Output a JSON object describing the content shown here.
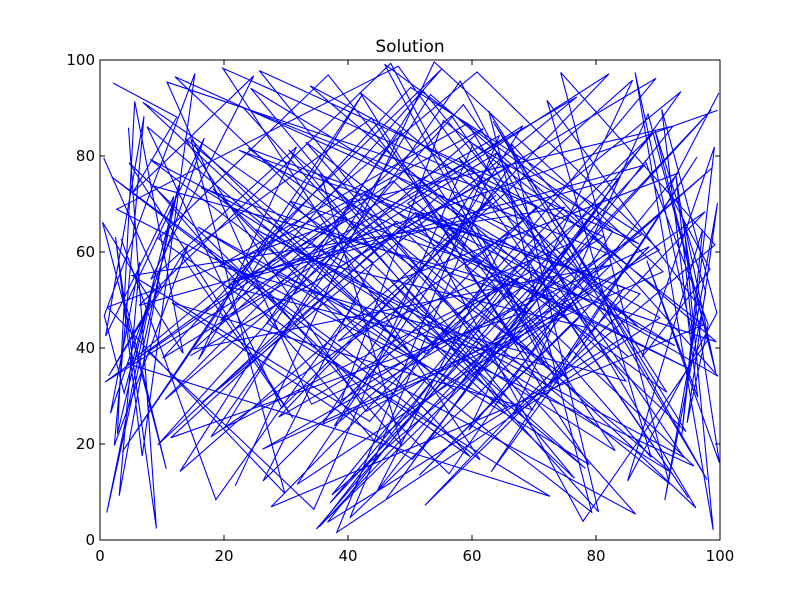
{
  "chart_data": {
    "type": "line",
    "title": "Solution",
    "xlabel": "",
    "ylabel": "",
    "xlim": [
      0,
      100
    ],
    "ylim": [
      0,
      100
    ],
    "x_ticks": [
      0,
      20,
      40,
      60,
      80,
      100
    ],
    "y_ticks": [
      0,
      20,
      40,
      60,
      80,
      100
    ],
    "x_tick_labels": [
      "0",
      "20",
      "40",
      "60",
      "80",
      "100"
    ],
    "y_tick_labels": [
      "0",
      "20",
      "40",
      "60",
      "80",
      "100"
    ],
    "grid": false,
    "line_color": "#0000ff",
    "series": [
      {
        "x": [
          2.1,
          12.4,
          5.3,
          24.8,
          8.2,
          31.7,
          15.9,
          42.3,
          3.6,
          27.5,
          55.1,
          19.4,
          68.2,
          37.8,
          81.5,
          46.2,
          93.7,
          58.9,
          72.4,
          96.3,
          63.1,
          84.6,
          51.2,
          77.9,
          98.1,
          88.4,
          66.7,
          99.2,
          74.3,
          91.8,
          57.4,
          35.6,
          48.7,
          22.3,
          61.8,
          10.5,
          39.4,
          1.2,
          29.8,
          14.7,
          53.6,
          6.9,
          44.1,
          26.3,
          70.5,
          33.9,
          85.2,
          49.8,
          94.5,
          62.7,
          79.3,
          41.6,
          18.2,
          59.7,
          9.4,
          36.8,
          75.6,
          23.9,
          87.1,
          52.4,
          97.6,
          67.3,
          43.8,
          13.2,
          31.1,
          4.7,
          56.3,
          82.7,
          45.9,
          71.8,
          20.6,
          64.4,
          38.2,
          90.3,
          54.8,
          16.5,
          76.9,
          28.4,
          95.8,
          47.3,
          7.8,
          34.5,
          60.2,
          86.9,
          25.7,
          69.8,
          11.6,
          50.4,
          92.4,
          40.7,
          0.8,
          32.6,
          78.4,
          58.1,
          17.9,
          65.9,
          44.7,
          83.8,
          21.4,
          99.6
        ],
        "y": [
          95.2,
          88.1,
          72.4,
          96.7,
          54.3,
          81.9,
          37.6,
          92.8,
          18.4,
          63.5,
          98.1,
          45.7,
          86.3,
          23.8,
          71.2,
          8.6,
          93.4,
          56.9,
          31.7,
          79.8,
          14.2,
          52.6,
          67.4,
          3.9,
          41.8,
          88.7,
          26.3,
          61.5,
          97.4,
          11.8,
          47.2,
          76.3,
          19.6,
          58.4,
          85.7,
          29.3,
          66.8,
          48.5,
          9.7,
          83.4,
          34.6,
          91.2,
          57.8,
          12.3,
          69.5,
          94.6,
          38.2,
          77.1,
          22.6,
          89.4,
          5.8,
          43.9,
          73.2,
          17.4,
          62.8,
          96.9,
          33.5,
          81.6,
          51.3,
          7.2,
          68.4,
          40.7,
          87.9,
          59.1,
          25.4,
          78.6,
          13.8,
          64.3,
          99.1,
          36.4,
          52.8,
          84.2,
          1.6,
          46.3,
          71.9,
          28.7,
          92.3,
          55.6,
          15.4,
          74.8,
          39.2,
          6.4,
          82.5,
          61.7,
          97.8,
          27.1,
          49.4,
          16.8,
          86.2,
          70.4,
          32.9,
          58.7,
          44.3,
          95.6,
          21.5,
          63.9,
          10.2,
          75.4,
          53.8,
          89.5
        ]
      },
      {
        "x": [
          3.4,
          18.7,
          41.2,
          7.6,
          29.3,
          63.8,
          12.9,
          52.1,
          84.3,
          36.7,
          70.2,
          22.4,
          95.1,
          47.8,
          9.3,
          58.6,
          79.4,
          31.8,
          66.1,
          14.6,
          89.7,
          43.5,
          5.2,
          74.9,
          27.6,
          97.3,
          55.4,
          38.9,
          81.2,
          19.8,
          61.3,
          1.9,
          45.6,
          86.4,
          33.2,
          68.7,
          11.4,
          50.9,
          92.7,
          24.3,
          76.5,
          39.7,
          8.1,
          57.2,
          98.6,
          35.4,
          64.9,
          16.3,
          83.1,
          48.4,
          26.9,
          72.6,
          4.5,
          60.8,
          90.2,
          42.9,
          13.7,
          78.3,
          30.6,
          99.4,
          53.3,
          20.1,
          67.4,
          37.1,
          87.8,
          6.3,
          46.9,
          73.8,
          25.1,
          94.2,
          56.7,
          15.2,
          82.4,
          40.3,
          62.5,
          10.8,
          34.1,
          88.6,
          51.5,
          77.2
        ],
        "y": [
          62.7,
          8.4,
          49.3,
          86.1,
          27.5,
          71.8,
          14.3,
          93.6,
          42.1,
          3.7,
          58.9,
          81.2,
          35.6,
          66.4,
          19.8,
          90.7,
          52.3,
          11.6,
          77.9,
          38.4,
          96.2,
          24.7,
          55.1,
          69.3,
          6.9,
          44.8,
          87.4,
          29.1,
          63.2,
          98.3,
          16.7,
          75.6,
          33.8,
          5.4,
          82.9,
          47.6,
          21.3,
          68.2,
          40.5,
          94.1,
          12.9,
          57.7,
          79.3,
          31.2,
          89.6,
          2.8,
          51.9,
          73.4,
          18.6,
          85.3,
          45.2,
          9.1,
          36.7,
          97.5,
          60.4,
          26.8,
          83.7,
          14.9,
          70.6,
          41.3,
          92.8,
          23.4,
          54.6,
          7.7,
          78.1,
          48.9,
          99.3,
          32.6,
          64.7,
          17.2,
          88.4,
          39.8,
          57.3,
          4.6,
          72.9,
          95.4,
          28.3,
          61.1,
          13.5,
          46.2
        ]
      },
      {
        "x": [
          96.8,
          72.1,
          88.9,
          54.7,
          99.7,
          66.3,
          80.4,
          47.1,
          93.2,
          59.5,
          85.9,
          38.4,
          76.1,
          97.9,
          63.4,
          91.4,
          49.6,
          82.1,
          28.8,
          69.9,
          94.9,
          57.9,
          86.7,
          41.9,
          78.9,
          15.8,
          52.8,
          89.3,
          34.9,
          73.1,
          8.7,
          44.4,
          81.7,
          23.1,
          61.6,
          98.8,
          37.4,
          70.8,
          12.1,
          55.8,
          92.1,
          30.4,
          65.7,
          2.7,
          48.1,
          84.8,
          19.2,
          59.3,
          96.1,
          42.6,
          75.3,
          26.2,
          87.3,
          50.1,
          10.1,
          64.1,
          35.9,
          90.8,
          53.9,
          21.8
        ],
        "y": [
          48.3,
          91.6,
          17.2,
          67.8,
          34.1,
          82.6,
          5.9,
          53.7,
          76.4,
          22.9,
          95.8,
          41.4,
          61.9,
          12.6,
          87.2,
          30.8,
          70.1,
          97.1,
          25.6,
          56.3,
          8.8,
          79.5,
          44.6,
          93.3,
          15.7,
          65.2,
          38.7,
          84.9,
          2.3,
          50.6,
          73.7,
          20.4,
          59.8,
          90.1,
          35.2,
          77.6,
          9.4,
          62.4,
          96.5,
          43.1,
          14.1,
          81.3,
          27.7,
          68.9,
          98.7,
          33.1,
          57.1,
          86.8,
          6.7,
          72.3,
          47.9,
          18.9,
          63.6,
          94.3,
          37.9,
          80.7,
          24.1,
          55.9,
          99.6,
          11.3
        ]
      },
      {
        "x": [
          0.6,
          9.8,
          1.4,
          14.2,
          2.3,
          7.1,
          0.9,
          11.9,
          3.1,
          6.4,
          1.7,
          16.8,
          4.2,
          10.7,
          0.4,
          13.4,
          5.6,
          2.8,
          8.9,
          1.1,
          12.7,
          3.9,
          0.7,
          15.3,
          6.8,
          2.5,
          9.1,
          4.6
        ],
        "y": [
          79.6,
          52.8,
          34.2,
          61.4,
          19.7,
          88.3,
          42.5,
          71.6,
          9.2,
          57.9,
          26.4,
          83.7,
          49.1,
          14.8,
          66.2,
          38.9,
          91.4,
          22.1,
          55.3,
          5.7,
          73.9,
          30.6,
          46.8,
          97.2,
          17.5,
          63.1,
          2.4,
          85.9
        ]
      },
      {
        "x": [
          99.8,
          91.6,
          98.4,
          87.4,
          99.1,
          93.8,
          97.2,
          85.1,
          99.5,
          90.6,
          96.4,
          88.2,
          99.9,
          92.9,
          95.7,
          86.3,
          98.9,
          94.1,
          99.3,
          89.5,
          97.7,
          91.1,
          99.6,
          94.7,
          98.1,
          87.9
        ],
        "y": [
          93.1,
          72.8,
          56.4,
          38.1,
          81.9,
          21.6,
          64.7,
          12.3,
          47.3,
          89.7,
          29.8,
          58.2,
          16.1,
          75.9,
          41.6,
          97.4,
          2.1,
          66.8,
          34.9,
          85.4,
          51.7,
          8.3,
          70.2,
          24.4,
          44.9,
          79.1
        ]
      }
    ]
  }
}
